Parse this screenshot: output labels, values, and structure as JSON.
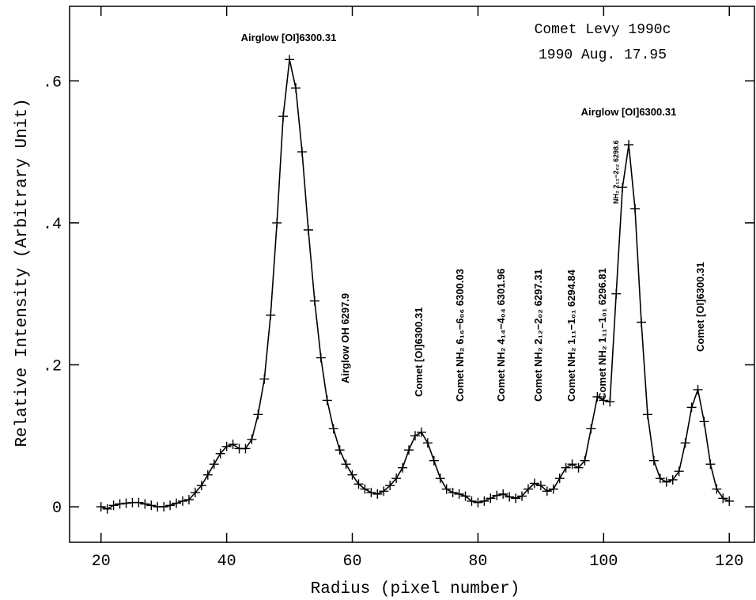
{
  "chart_data": {
    "type": "line",
    "title": "Comet Levy 1990c",
    "subtitle": "1990 Aug. 17.95",
    "x_label": "Radius (pixel number)",
    "y_label": "Relative Intensity (Arbitrary Unit)",
    "annotations": [
      "Airglow [OI]6300.31",
      "Airglow [OI]6300.31",
      "Airglow OH 6297.9",
      "Comet [OI]6300.31",
      "Comet NH₂ 6₁₆−6₀₆ 6300.03",
      "Comet NH₂ 4₁₄−4₀₄ 6301.96",
      "Comet NH₂ 2₁₂−2₀₂ 6297.31",
      "Comet NH₂ 1₁₁−1₀₁ 6294.84",
      "Comet NH₂ 1₁₁−1₀₁ 6296.81",
      "NH₂ 2₁₂−2₀₂ 6298.6",
      "Comet [OI]6300.31"
    ],
    "x": [
      20,
      21,
      22,
      23,
      24,
      25,
      26,
      27,
      28,
      29,
      30,
      31,
      32,
      33,
      34,
      35,
      36,
      37,
      38,
      39,
      40,
      41,
      42,
      43,
      44,
      45,
      46,
      47,
      48,
      49,
      50,
      51,
      52,
      53,
      54,
      55,
      56,
      57,
      58,
      59,
      60,
      61,
      62,
      63,
      64,
      65,
      66,
      67,
      68,
      69,
      70,
      71,
      72,
      73,
      74,
      75,
      76,
      77,
      78,
      79,
      80,
      81,
      82,
      83,
      84,
      85,
      86,
      87,
      88,
      89,
      90,
      91,
      92,
      93,
      94,
      95,
      96,
      97,
      98,
      99,
      100,
      101,
      102,
      103,
      104,
      105,
      106,
      107,
      108,
      109,
      110,
      111,
      112,
      113,
      114,
      115,
      116,
      117,
      118,
      119,
      120
    ],
    "series": [
      {
        "color": "#000000",
        "values": [
          0.0,
          -0.003,
          0.002,
          0.004,
          0.005,
          0.006,
          0.006,
          0.004,
          0.002,
          0.0,
          0.0,
          0.002,
          0.005,
          0.008,
          0.01,
          0.02,
          0.03,
          0.045,
          0.06,
          0.075,
          0.085,
          0.088,
          0.082,
          0.082,
          0.095,
          0.13,
          0.18,
          0.27,
          0.4,
          0.55,
          0.63,
          0.59,
          0.5,
          0.39,
          0.29,
          0.21,
          0.15,
          0.11,
          0.08,
          0.06,
          0.045,
          0.032,
          0.025,
          0.02,
          0.018,
          0.022,
          0.03,
          0.04,
          0.055,
          0.08,
          0.1,
          0.105,
          0.09,
          0.065,
          0.04,
          0.025,
          0.02,
          0.018,
          0.015,
          0.008,
          0.006,
          0.008,
          0.012,
          0.016,
          0.018,
          0.014,
          0.012,
          0.015,
          0.025,
          0.033,
          0.03,
          0.022,
          0.025,
          0.04,
          0.055,
          0.06,
          0.055,
          0.065,
          0.11,
          0.155,
          0.15,
          0.148,
          0.3,
          0.45,
          0.51,
          0.42,
          0.26,
          0.13,
          0.065,
          0.04,
          0.035,
          0.038,
          0.05,
          0.09,
          0.14,
          0.165,
          0.12,
          0.06,
          0.025,
          0.012,
          0.008
        ]
      }
    ],
    "xlim": [
      15,
      124
    ],
    "ylim": [
      -0.05,
      0.705
    ],
    "xticks": [
      20,
      40,
      60,
      80,
      100,
      120
    ],
    "yticks": [
      0,
      {
        "value": 0.2,
        "label": ".2"
      },
      {
        "value": 0.4,
        "label": ".4"
      },
      {
        "value": 0.6,
        "label": ".6"
      }
    ],
    "markers": true
  }
}
